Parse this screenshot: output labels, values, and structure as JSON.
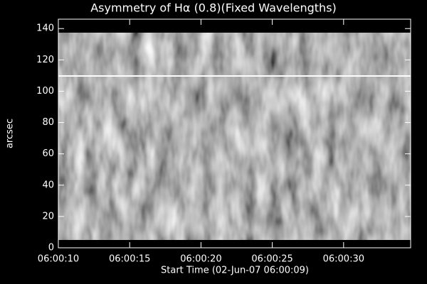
{
  "chart_data": {
    "type": "image",
    "title": "Asymmetry of Hα (0.8)(Fixed Wavelengths)",
    "xlabel": "Start Time (02-Jun-07 06:00:09)",
    "ylabel": "arcsec",
    "xlim": [
      10,
      34.7
    ],
    "xticks": [
      {
        "value": 10,
        "label": "06:00:10"
      },
      {
        "value": 15,
        "label": "06:00:15"
      },
      {
        "value": 20,
        "label": "06:00:20"
      },
      {
        "value": 25,
        "label": "06:00:25"
      },
      {
        "value": 30,
        "label": "06:00:30"
      }
    ],
    "ylim": [
      0,
      146
    ],
    "yticks": [
      0,
      20,
      40,
      60,
      80,
      100,
      120,
      140
    ],
    "colormap": "gray"
  }
}
